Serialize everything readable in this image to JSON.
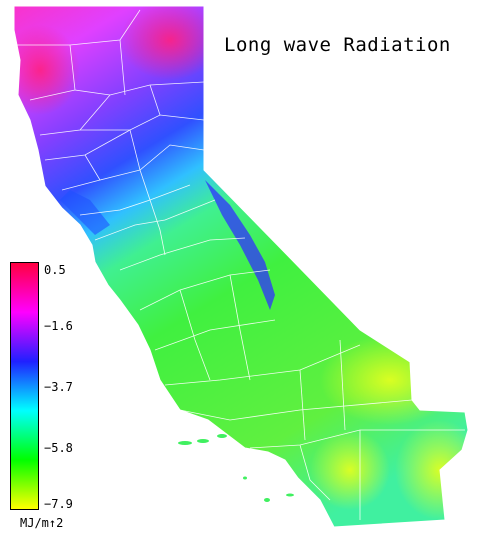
{
  "title": "Long wave Radiation",
  "legend": {
    "ticks": [
      "0.5",
      "−1.6",
      "−3.7",
      "−5.8",
      "−7.9"
    ],
    "tick_values": [
      0.5,
      -1.6,
      -3.7,
      -5.8,
      -7.9
    ],
    "unit": "MJ/m↑2",
    "colors": [
      "#ff0040",
      "#ff00ff",
      "#2020ff",
      "#00ffff",
      "#00ff00",
      "#ffff00"
    ]
  },
  "map_colors": {
    "high": "#ff30b0",
    "mid_high": "#b030ff",
    "mid": "#3040ff",
    "mid_low": "#30c8ff",
    "low": "#40f040",
    "lowest": "#d8ff20",
    "border": "#ffffff"
  }
}
